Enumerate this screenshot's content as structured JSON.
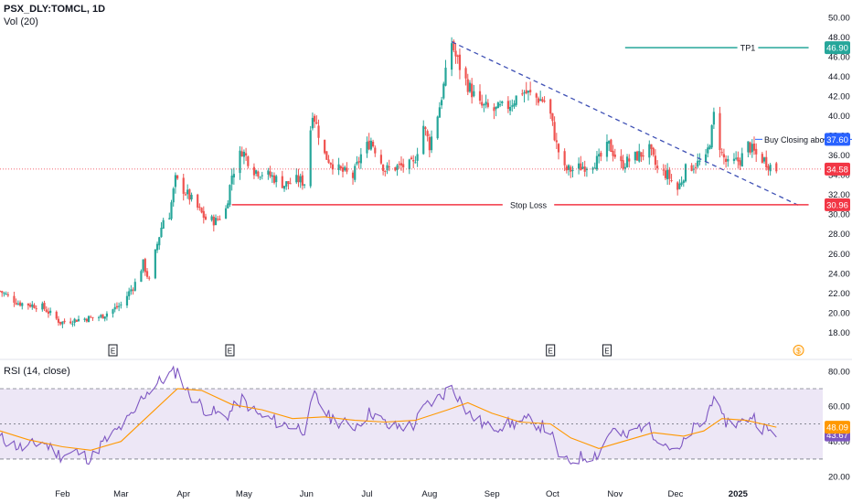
{
  "header": {
    "symbol": "PSX_DLY:TOMCL, 1D",
    "volume_indicator": "Vol (20)",
    "rsi_indicator": "RSI (14, close)"
  },
  "colors": {
    "up": "#26a69a",
    "down": "#ef5350",
    "trendline": "#3f51b5",
    "tp_line": "#26a69a",
    "tp_tag": "#00897b",
    "stop_line": "#f23645",
    "stop_tag": "#f23645",
    "buy_tag": "#2962ff",
    "price_tag": "#f23645",
    "rsi_line": "#7e57c2",
    "rsi_ma": "#ff9800",
    "rsi_band": "#ede7f6"
  },
  "chart_data": [
    {
      "type": "candlestick",
      "symbol": "PSX_DLY:TOMCL",
      "interval": "1D",
      "ylim": [
        16,
        51
      ],
      "y_ticks": [
        18,
        20,
        22,
        24,
        26,
        28,
        30,
        32,
        34,
        36,
        38,
        40,
        42,
        44,
        46,
        48,
        50
      ],
      "x_labels": [
        "Feb",
        "Mar",
        "Apr",
        "May",
        "Jun",
        "Jul",
        "Aug",
        "Sep",
        "Oct",
        "Nov",
        "Dec",
        "2025"
      ],
      "price_path": [
        [
          "2024-01-01",
          22.2
        ],
        [
          "2024-01-10",
          21.0
        ],
        [
          "2024-01-22",
          20.6
        ],
        [
          "2024-01-31",
          19.0
        ],
        [
          "2024-02-08",
          19.3
        ],
        [
          "2024-02-20",
          19.6
        ],
        [
          "2024-03-01",
          20.8
        ],
        [
          "2024-03-08",
          23.0
        ],
        [
          "2024-03-12",
          25.0
        ],
        [
          "2024-03-15",
          23.2
        ],
        [
          "2024-03-19",
          27.0
        ],
        [
          "2024-03-22",
          29.5
        ],
        [
          "2024-03-25",
          30.0
        ],
        [
          "2024-03-28",
          33.5
        ],
        [
          "2024-04-03",
          32.0
        ],
        [
          "2024-04-12",
          29.5
        ],
        [
          "2024-04-17",
          29.3
        ],
        [
          "2024-04-22",
          30.5
        ],
        [
          "2024-04-25",
          34.0
        ],
        [
          "2024-04-30",
          36.5
        ],
        [
          "2024-05-06",
          34.5
        ],
        [
          "2024-05-15",
          33.8
        ],
        [
          "2024-05-21",
          33.0
        ],
        [
          "2024-05-28",
          33.5
        ],
        [
          "2024-05-31",
          33.2
        ],
        [
          "2024-06-04",
          40.5
        ],
        [
          "2024-06-10",
          36.0
        ],
        [
          "2024-06-17",
          34.5
        ],
        [
          "2024-06-24",
          33.8
        ],
        [
          "2024-06-28",
          36.0
        ],
        [
          "2024-07-03",
          37.5
        ],
        [
          "2024-07-10",
          34.5
        ],
        [
          "2024-07-16",
          34.8
        ],
        [
          "2024-07-24",
          35.0
        ],
        [
          "2024-07-29",
          39.0
        ],
        [
          "2024-08-01",
          37.0
        ],
        [
          "2024-08-06",
          41.0
        ],
        [
          "2024-08-08",
          43.0
        ],
        [
          "2024-08-12",
          47.5
        ],
        [
          "2024-08-14",
          46.0
        ],
        [
          "2024-08-19",
          43.5
        ],
        [
          "2024-08-26",
          41.0
        ],
        [
          "2024-09-02",
          40.5
        ],
        [
          "2024-09-09",
          41.0
        ],
        [
          "2024-09-16",
          42.5
        ],
        [
          "2024-09-23",
          41.8
        ],
        [
          "2024-09-27",
          41.5
        ],
        [
          "2024-09-30",
          40.0
        ],
        [
          "2024-10-03",
          37.0
        ],
        [
          "2024-10-07",
          34.5
        ],
        [
          "2024-10-11",
          34.5
        ],
        [
          "2024-10-18",
          35.0
        ],
        [
          "2024-10-24",
          35.5
        ],
        [
          "2024-10-29",
          37.0
        ],
        [
          "2024-11-04",
          35.0
        ],
        [
          "2024-11-11",
          35.8
        ],
        [
          "2024-11-18",
          36.5
        ],
        [
          "2024-11-22",
          34.5
        ],
        [
          "2024-11-27",
          34.0
        ],
        [
          "2024-12-02",
          32.5
        ],
        [
          "2024-12-06",
          34.5
        ],
        [
          "2024-12-10",
          35.0
        ],
        [
          "2024-12-16",
          35.5
        ],
        [
          "2024-12-19",
          38.5
        ],
        [
          "2024-12-20",
          40.0
        ],
        [
          "2024-12-24",
          36.0
        ],
        [
          "2024-12-27",
          35.0
        ],
        [
          "2025-01-02",
          35.5
        ],
        [
          "2025-01-06",
          37.0
        ],
        [
          "2025-01-10",
          36.0
        ],
        [
          "2025-01-14",
          35.5
        ],
        [
          "2025-01-17",
          34.9
        ],
        [
          "2025-01-20",
          34.58
        ]
      ],
      "last_price": 34.58,
      "earnings_markers": [
        "2024-02-26",
        "2024-04-24",
        "2024-09-30",
        "2024-10-28"
      ],
      "dividend_marker": "2025-01-31",
      "annotations": [
        {
          "label": "TP1",
          "price": 46.9,
          "tag": "46.90",
          "from": "2024-11-06",
          "to": "2025-02-05",
          "color": "#26a69a"
        },
        {
          "label": "Buy Closing above.",
          "price": 37.6,
          "tag": "37.60",
          "from": "2025-01-01",
          "to": "2025-02-05",
          "color": "#2962ff"
        },
        {
          "label": "Stop Loss",
          "price": 30.96,
          "tag": "30.96",
          "from": "2024-04-25",
          "to": "2025-02-05",
          "color": "#f23645"
        }
      ],
      "trendline": [
        [
          "2024-08-12",
          47.5
        ],
        [
          "2025-01-31",
          30.9
        ]
      ]
    },
    {
      "type": "line",
      "title": "RSI (14, close)",
      "ylim": [
        18,
        83
      ],
      "y_ticks": [
        20,
        40,
        60,
        80
      ],
      "bands": [
        30,
        70
      ],
      "midline": 50,
      "series": [
        {
          "role": "rsi",
          "color": "#7e57c2",
          "last": 43.67,
          "path": [
            [
              "2024-01-01",
              42
            ],
            [
              "2024-01-12",
              36
            ],
            [
              "2024-01-22",
              40
            ],
            [
              "2024-01-31",
              32
            ],
            [
              "2024-02-08",
              34
            ],
            [
              "2024-02-15",
              30
            ],
            [
              "2024-02-20",
              38
            ],
            [
              "2024-02-28",
              46
            ],
            [
              "2024-03-07",
              55
            ],
            [
              "2024-03-12",
              66
            ],
            [
              "2024-03-19",
              73
            ],
            [
              "2024-03-25",
              78
            ],
            [
              "2024-03-29",
              80
            ],
            [
              "2024-04-03",
              68
            ],
            [
              "2024-04-12",
              58
            ],
            [
              "2024-04-22",
              54
            ],
            [
              "2024-04-30",
              64
            ],
            [
              "2024-05-08",
              55
            ],
            [
              "2024-05-20",
              50
            ],
            [
              "2024-05-31",
              47
            ],
            [
              "2024-06-05",
              66
            ],
            [
              "2024-06-12",
              54
            ],
            [
              "2024-06-24",
              48
            ],
            [
              "2024-07-03",
              57
            ],
            [
              "2024-07-12",
              48
            ],
            [
              "2024-07-24",
              49
            ],
            [
              "2024-07-30",
              60
            ],
            [
              "2024-08-07",
              66
            ],
            [
              "2024-08-12",
              72
            ],
            [
              "2024-08-20",
              56
            ],
            [
              "2024-08-30",
              48
            ],
            [
              "2024-09-10",
              50
            ],
            [
              "2024-09-20",
              52
            ],
            [
              "2024-09-30",
              46
            ],
            [
              "2024-10-03",
              34
            ],
            [
              "2024-10-08",
              28
            ],
            [
              "2024-10-15",
              31
            ],
            [
              "2024-10-24",
              33
            ],
            [
              "2024-10-30",
              47
            ],
            [
              "2024-11-06",
              42
            ],
            [
              "2024-11-15",
              50
            ],
            [
              "2024-11-22",
              43
            ],
            [
              "2024-12-02",
              33
            ],
            [
              "2024-12-09",
              46
            ],
            [
              "2024-12-16",
              52
            ],
            [
              "2024-12-20",
              68
            ],
            [
              "2024-12-24",
              52
            ],
            [
              "2025-01-02",
              50
            ],
            [
              "2025-01-08",
              55
            ],
            [
              "2025-01-13",
              48
            ],
            [
              "2025-01-20",
              43.67
            ]
          ]
        },
        {
          "role": "rsi-moving-average",
          "color": "#ff9800",
          "last": 48.09,
          "path": [
            [
              "2024-01-01",
              46
            ],
            [
              "2024-01-15",
              41
            ],
            [
              "2024-02-01",
              37
            ],
            [
              "2024-02-15",
              35
            ],
            [
              "2024-03-01",
              40
            ],
            [
              "2024-03-15",
              55
            ],
            [
              "2024-03-29",
              70
            ],
            [
              "2024-04-10",
              69
            ],
            [
              "2024-04-25",
              61
            ],
            [
              "2024-05-10",
              58
            ],
            [
              "2024-05-25",
              53
            ],
            [
              "2024-06-10",
              54
            ],
            [
              "2024-06-25",
              52
            ],
            [
              "2024-07-10",
              51
            ],
            [
              "2024-07-25",
              52
            ],
            [
              "2024-08-10",
              58
            ],
            [
              "2024-08-20",
              62
            ],
            [
              "2024-09-01",
              56
            ],
            [
              "2024-09-15",
              51
            ],
            [
              "2024-09-30",
              50
            ],
            [
              "2024-10-10",
              42
            ],
            [
              "2024-10-24",
              36
            ],
            [
              "2024-11-05",
              40
            ],
            [
              "2024-11-20",
              45
            ],
            [
              "2024-12-05",
              43
            ],
            [
              "2024-12-15",
              46
            ],
            [
              "2024-12-24",
              53
            ],
            [
              "2025-01-05",
              52
            ],
            [
              "2025-01-20",
              48.09
            ]
          ]
        }
      ]
    }
  ]
}
